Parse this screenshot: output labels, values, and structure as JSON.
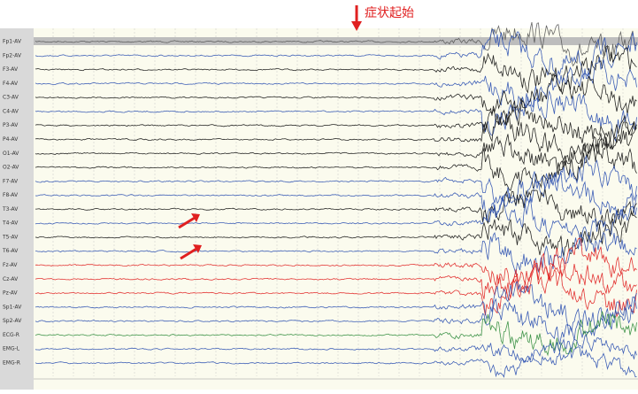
{
  "annotation": "症状起始",
  "channels": [
    {
      "label": "Fp1-AV",
      "color": "#555555"
    },
    {
      "label": "Fp2-AV",
      "color": "#2a4fb0"
    },
    {
      "label": "F3-AV",
      "color": "#111111"
    },
    {
      "label": "F4-AV",
      "color": "#2a4fb0"
    },
    {
      "label": "C3-AV",
      "color": "#111111"
    },
    {
      "label": "C4-AV",
      "color": "#2a4fb0"
    },
    {
      "label": "P3-AV",
      "color": "#111111"
    },
    {
      "label": "P4-AV",
      "color": "#111111"
    },
    {
      "label": "O1-AV",
      "color": "#111111"
    },
    {
      "label": "O2-AV",
      "color": "#111111"
    },
    {
      "label": "F7-AV",
      "color": "#2a4fb0"
    },
    {
      "label": "F8-AV",
      "color": "#2a4fb0"
    },
    {
      "label": "T3-AV",
      "color": "#111111"
    },
    {
      "label": "T4-AV",
      "color": "#2a4fb0"
    },
    {
      "label": "T5-AV",
      "color": "#111111"
    },
    {
      "label": "T6-AV",
      "color": "#2a4fb0"
    },
    {
      "label": "Fz-AV",
      "color": "#e02020"
    },
    {
      "label": "Cz-AV",
      "color": "#e02020"
    },
    {
      "label": "Pz-AV",
      "color": "#e02020"
    },
    {
      "label": "Sp1-AV",
      "color": "#2a4fb0"
    },
    {
      "label": "Sp2-AV",
      "color": "#2a4fb0"
    },
    {
      "label": "ECG-R",
      "color": "#2e8b3a"
    },
    {
      "label": "EMG-L",
      "color": "#2a4fb0"
    },
    {
      "label": "EMG-R",
      "color": "#2a4fb0"
    }
  ]
}
